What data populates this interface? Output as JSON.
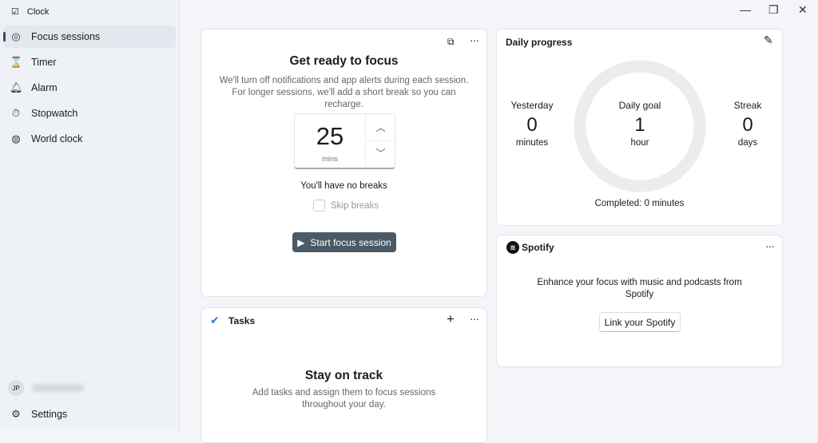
{
  "app": {
    "title": "Clock"
  },
  "sidebar": {
    "items": [
      {
        "label": "Focus sessions",
        "icon": "focus-icon",
        "active": true
      },
      {
        "label": "Timer",
        "icon": "hourglass-icon"
      },
      {
        "label": "Alarm",
        "icon": "bell-icon"
      },
      {
        "label": "Stopwatch",
        "icon": "stopwatch-icon"
      },
      {
        "label": "World clock",
        "icon": "globe-icon"
      }
    ],
    "user_initials": "JP",
    "settings": "Settings"
  },
  "focus": {
    "title": "Get ready to focus",
    "description": "We'll turn off notifications and app alerts during each session. For longer sessions, we'll add a short break so you can recharge.",
    "minutes": "25",
    "unit": "mins",
    "breaks_text": "You'll have no breaks",
    "skip_breaks": "Skip breaks",
    "skip_checked": false,
    "start": "Start focus session"
  },
  "tasks": {
    "title": "Tasks",
    "empty_title": "Stay on track",
    "empty_text": "Add tasks and assign them to focus sessions throughout your day."
  },
  "progress": {
    "title": "Daily progress",
    "yesterday_label": "Yesterday",
    "yesterday_value": "0",
    "yesterday_unit": "minutes",
    "goal_label": "Daily goal",
    "goal_value": "1",
    "goal_unit": "hour",
    "streak_label": "Streak",
    "streak_value": "0",
    "streak_unit": "days",
    "completed": "Completed: 0 minutes",
    "fraction": 0
  },
  "spotify": {
    "brand": "Spotify",
    "text": "Enhance your focus with music and podcasts from Spotify",
    "link": "Link your Spotify"
  }
}
